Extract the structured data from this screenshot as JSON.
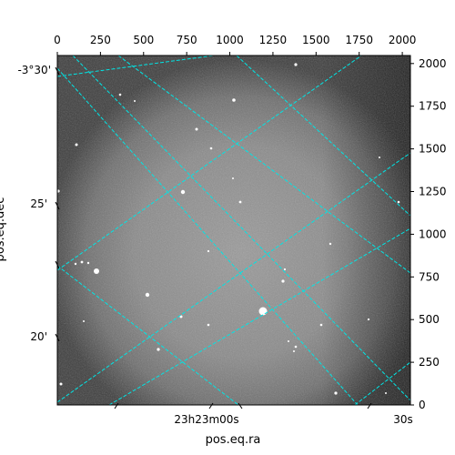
{
  "axes": {
    "top_ticks": [
      "0",
      "250",
      "500",
      "750",
      "1000",
      "1250",
      "1500",
      "1750",
      "2000"
    ],
    "right_ticks": [
      "0",
      "250",
      "500",
      "750",
      "1000",
      "1250",
      "1500",
      "1750",
      "2000"
    ],
    "left_ticks": [
      "-3°30'",
      "25'",
      "20'"
    ],
    "bottom_ticks": [
      "23h23m00s",
      "30s"
    ],
    "xlabel": "pos.eq.ra",
    "ylabel": "pos.eq.dec"
  },
  "colors": {
    "grid": "#00e5e5",
    "background": "#ffffff",
    "frame": "#000000"
  }
}
